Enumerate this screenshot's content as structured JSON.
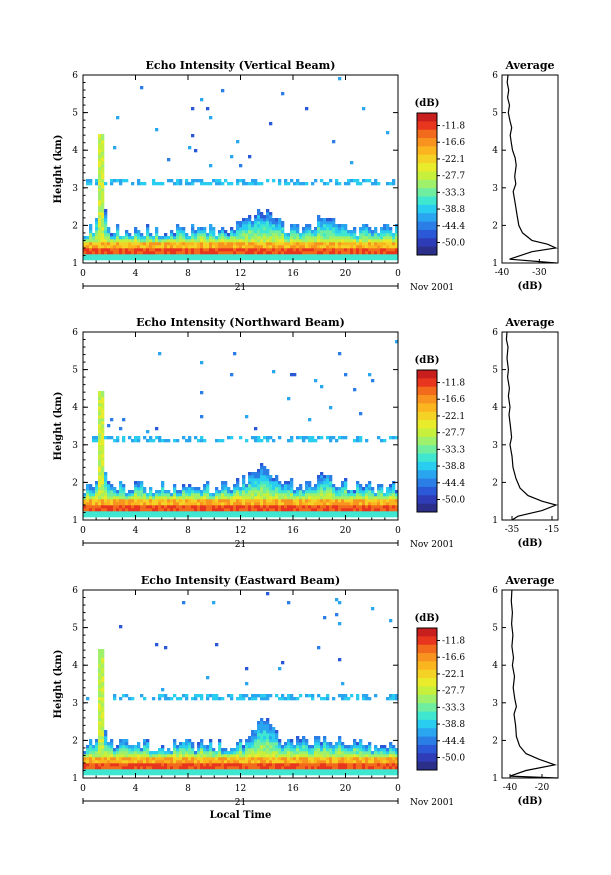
{
  "chart_data": [
    {
      "type": "heatmap",
      "title": "Echo Intensity (Vertical Beam)",
      "ylabel": "Height (km)",
      "xlabel": "",
      "x_ticks": [
        "0",
        "4",
        "8",
        "12",
        "16",
        "20",
        "0"
      ],
      "y_ticks": [
        "1",
        "2",
        "3",
        "4",
        "5",
        "6"
      ],
      "xlim": [
        0,
        24
      ],
      "ylim": [
        1,
        6
      ],
      "date_label": "21",
      "date_suffix": "Nov 2001",
      "colorbar": {
        "unit": "(dB)",
        "levels": [
          "-11.8",
          "-16.6",
          "-22.1",
          "-27.7",
          "-33.3",
          "-38.8",
          "-44.4",
          "-50.0"
        ],
        "colors": [
          "#c81e1e",
          "#e8351e",
          "#f26a1c",
          "#f7931e",
          "#fbb61f",
          "#f5d226",
          "#e8ec2b",
          "#c7f03c",
          "#9ff06a",
          "#70eea0",
          "#3fe6d0",
          "#29cdf0",
          "#2aa5f0",
          "#2a7ee6",
          "#2a58d6",
          "#2f3cb8",
          "#2b2f8a"
        ]
      },
      "profile": {
        "title": "Average",
        "xlabel": "(dB)",
        "x_ticks": [
          "-40",
          "-30"
        ],
        "xlim": [
          -40,
          -25
        ],
        "points": [
          [
            -25.4,
            1.0
          ],
          [
            -38.0,
            1.1
          ],
          [
            -32.0,
            1.3
          ],
          [
            -25.6,
            1.4
          ],
          [
            -27.8,
            1.5
          ],
          [
            -32.0,
            1.6
          ],
          [
            -34.5,
            1.8
          ],
          [
            -35.5,
            2.0
          ],
          [
            -36.0,
            2.3
          ],
          [
            -36.5,
            2.6
          ],
          [
            -37.0,
            2.9
          ],
          [
            -36.3,
            3.1
          ],
          [
            -36.6,
            3.3
          ],
          [
            -36.2,
            3.6
          ],
          [
            -36.5,
            3.8
          ],
          [
            -37.2,
            4.0
          ],
          [
            -37.5,
            4.2
          ],
          [
            -37.8,
            4.4
          ],
          [
            -37.4,
            4.6
          ],
          [
            -37.9,
            4.8
          ],
          [
            -38.3,
            5.0
          ],
          [
            -38.0,
            5.2
          ],
          [
            -38.5,
            5.4
          ],
          [
            -38.2,
            5.6
          ],
          [
            -38.6,
            5.8
          ],
          [
            -38.4,
            6.0
          ]
        ]
      }
    },
    {
      "type": "heatmap",
      "title": "Echo Intensity (Northward Beam)",
      "ylabel": "Height (km)",
      "xlabel": "",
      "x_ticks": [
        "0",
        "4",
        "8",
        "12",
        "16",
        "20",
        "0"
      ],
      "y_ticks": [
        "1",
        "2",
        "3",
        "4",
        "5",
        "6"
      ],
      "xlim": [
        0,
        24
      ],
      "ylim": [
        1,
        6
      ],
      "date_label": "21",
      "date_suffix": "Nov 2001",
      "colorbar": {
        "unit": "(dB)",
        "levels": [
          "-11.8",
          "-16.6",
          "-22.1",
          "-27.7",
          "-33.3",
          "-38.8",
          "-44.4",
          "-50.0"
        ],
        "colors": [
          "#c81e1e",
          "#e8351e",
          "#f26a1c",
          "#f7931e",
          "#fbb61f",
          "#f5d226",
          "#e8ec2b",
          "#c7f03c",
          "#9ff06a",
          "#70eea0",
          "#3fe6d0",
          "#29cdf0",
          "#2aa5f0",
          "#2a7ee6",
          "#2a58d6",
          "#2f3cb8",
          "#2b2f8a"
        ]
      },
      "profile": {
        "title": "Average",
        "xlabel": "(dB)",
        "x_ticks": [
          "-35",
          "-15"
        ],
        "xlim": [
          -40,
          -12
        ],
        "points": [
          [
            -35.0,
            1.0
          ],
          [
            -32.0,
            1.1
          ],
          [
            -20.0,
            1.25
          ],
          [
            -13.0,
            1.4
          ],
          [
            -20.0,
            1.5
          ],
          [
            -27.0,
            1.65
          ],
          [
            -31.0,
            1.85
          ],
          [
            -33.0,
            2.1
          ],
          [
            -34.5,
            2.4
          ],
          [
            -35.0,
            2.7
          ],
          [
            -36.0,
            3.0
          ],
          [
            -35.2,
            3.2
          ],
          [
            -35.8,
            3.5
          ],
          [
            -36.5,
            3.8
          ],
          [
            -36.0,
            4.0
          ],
          [
            -36.8,
            4.3
          ],
          [
            -36.3,
            4.5
          ],
          [
            -37.2,
            4.8
          ],
          [
            -36.8,
            5.0
          ],
          [
            -37.5,
            5.3
          ],
          [
            -37.0,
            5.6
          ],
          [
            -37.8,
            5.8
          ],
          [
            -37.5,
            6.0
          ]
        ]
      }
    },
    {
      "type": "heatmap",
      "title": "Echo Intensity (Eastward Beam)",
      "ylabel": "Height (km)",
      "xlabel": "Local Time",
      "x_ticks": [
        "0",
        "4",
        "8",
        "12",
        "16",
        "20",
        "0"
      ],
      "y_ticks": [
        "1",
        "2",
        "3",
        "4",
        "5",
        "6"
      ],
      "xlim": [
        0,
        24
      ],
      "ylim": [
        1,
        6
      ],
      "date_label": "21",
      "date_suffix": "Nov 2001",
      "colorbar": {
        "unit": "(dB)",
        "levels": [
          "-11.8",
          "-16.6",
          "-22.1",
          "-27.7",
          "-33.3",
          "-38.8",
          "-44.4",
          "-50.0"
        ],
        "colors": [
          "#c81e1e",
          "#e8351e",
          "#f26a1c",
          "#f7931e",
          "#fbb61f",
          "#f5d226",
          "#e8ec2b",
          "#c7f03c",
          "#9ff06a",
          "#70eea0",
          "#3fe6d0",
          "#29cdf0",
          "#2aa5f0",
          "#2a7ee6",
          "#2a58d6",
          "#2f3cb8",
          "#2b2f8a"
        ]
      },
      "profile": {
        "title": "Average",
        "xlabel": "(dB)",
        "x_ticks": [
          "-40",
          "-20"
        ],
        "xlim": [
          -45,
          -10
        ],
        "points": [
          [
            -10.5,
            1.0
          ],
          [
            -40.0,
            1.05
          ],
          [
            -30.0,
            1.2
          ],
          [
            -12.0,
            1.35
          ],
          [
            -22.0,
            1.5
          ],
          [
            -30.0,
            1.65
          ],
          [
            -34.0,
            1.85
          ],
          [
            -36.0,
            2.1
          ],
          [
            -36.5,
            2.4
          ],
          [
            -37.5,
            2.7
          ],
          [
            -36.0,
            2.9
          ],
          [
            -37.0,
            3.1
          ],
          [
            -38.0,
            3.4
          ],
          [
            -37.2,
            3.7
          ],
          [
            -38.5,
            4.0
          ],
          [
            -37.8,
            4.2
          ],
          [
            -38.8,
            4.5
          ],
          [
            -38.2,
            4.8
          ],
          [
            -39.0,
            5.1
          ],
          [
            -38.5,
            5.4
          ],
          [
            -39.2,
            5.7
          ],
          [
            -38.8,
            6.0
          ]
        ]
      }
    }
  ]
}
